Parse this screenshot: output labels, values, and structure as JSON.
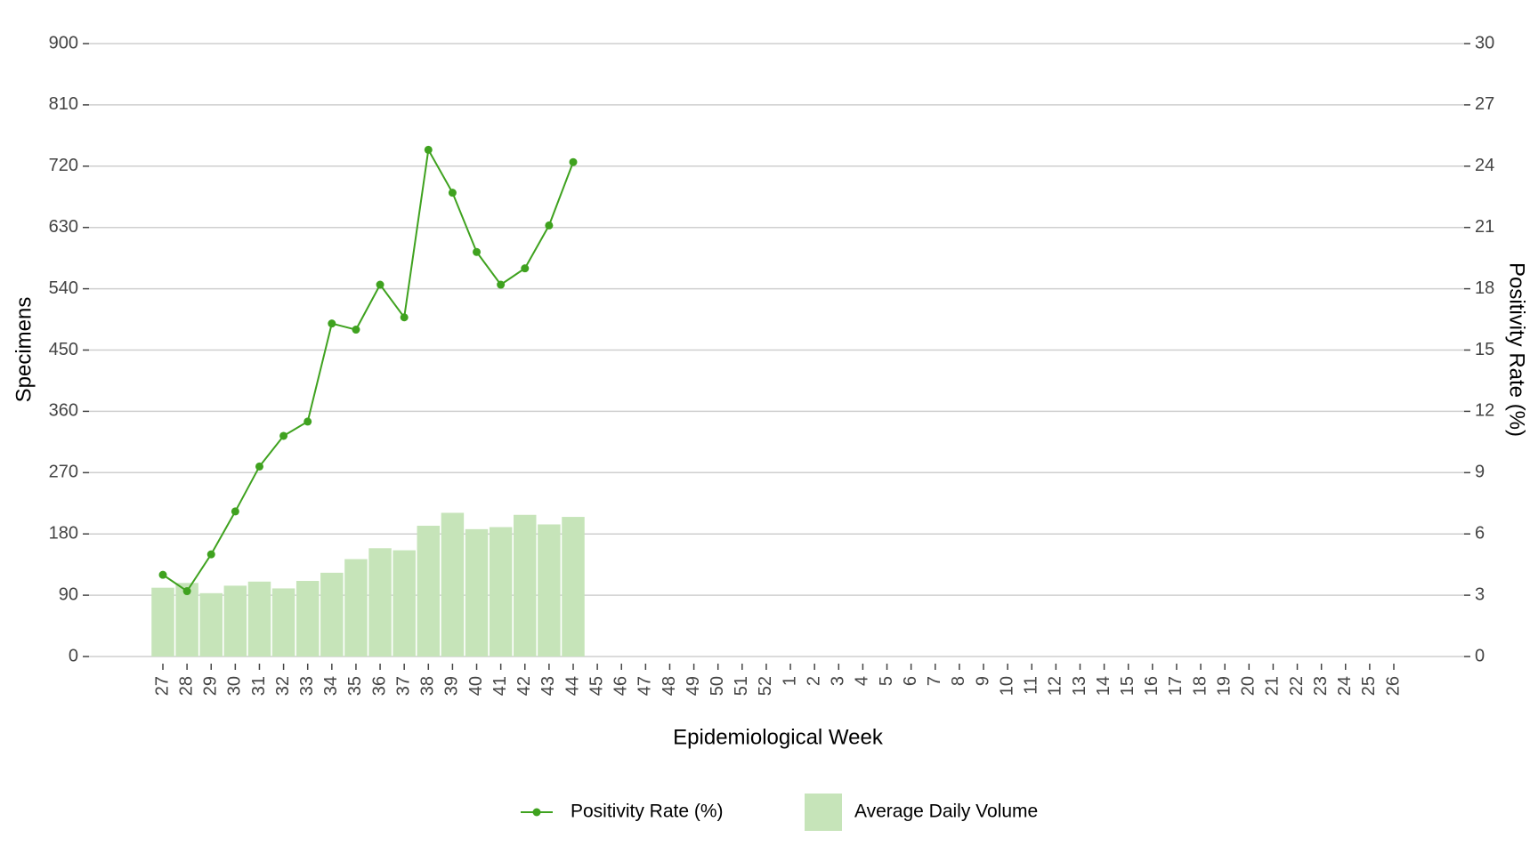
{
  "chart_data": {
    "type": "bar",
    "x_label": "Epidemiological Week",
    "y_label": "Specimens",
    "y2_label": "Positivity Rate (%)",
    "categories": [
      "27",
      "28",
      "29",
      "30",
      "31",
      "32",
      "33",
      "34",
      "35",
      "36",
      "37",
      "38",
      "39",
      "40",
      "41",
      "42",
      "43",
      "44",
      "45",
      "46",
      "47",
      "48",
      "49",
      "50",
      "51",
      "52",
      "1",
      "2",
      "3",
      "4",
      "5",
      "6",
      "7",
      "8",
      "9",
      "10",
      "11",
      "12",
      "13",
      "14",
      "15",
      "16",
      "17",
      "18",
      "19",
      "20",
      "21",
      "22",
      "23",
      "24",
      "25",
      "26"
    ],
    "series": [
      {
        "name": "Positivity Rate (%)",
        "type": "line",
        "axis": "y2",
        "color": "#3fa21f",
        "values": [
          4.0,
          3.2,
          5.0,
          7.1,
          9.3,
          10.8,
          11.5,
          16.3,
          16.0,
          18.2,
          16.6,
          24.8,
          22.7,
          19.8,
          18.2,
          19.0,
          21.1,
          24.2,
          null,
          null,
          null,
          null,
          null,
          null,
          null,
          null,
          null,
          null,
          null,
          null,
          null,
          null,
          null,
          null,
          null,
          null,
          null,
          null,
          null,
          null,
          null,
          null,
          null,
          null,
          null,
          null,
          null,
          null,
          null,
          null,
          null,
          null
        ]
      },
      {
        "name": "Average Daily Volume",
        "type": "bar",
        "color": "#c6e4b9",
        "values": [
          101,
          108,
          93,
          104,
          110,
          100,
          111,
          123,
          143,
          159,
          156,
          192,
          211,
          187,
          190,
          208,
          194,
          205,
          null,
          null,
          null,
          null,
          null,
          null,
          null,
          null,
          null,
          null,
          null,
          null,
          null,
          null,
          null,
          null,
          null,
          null,
          null,
          null,
          null,
          null,
          null,
          null,
          null,
          null,
          null,
          null,
          null,
          null,
          null,
          null,
          null,
          null
        ]
      }
    ],
    "ylim": [
      0,
      900
    ],
    "yticks": [
      0,
      90,
      180,
      270,
      360,
      450,
      540,
      630,
      720,
      810,
      900
    ],
    "y2lim": [
      0,
      30
    ],
    "y2ticks": [
      0,
      3,
      6,
      9,
      12,
      15,
      18,
      21,
      24,
      27,
      30
    ],
    "grid": true,
    "legend": "bottom"
  }
}
